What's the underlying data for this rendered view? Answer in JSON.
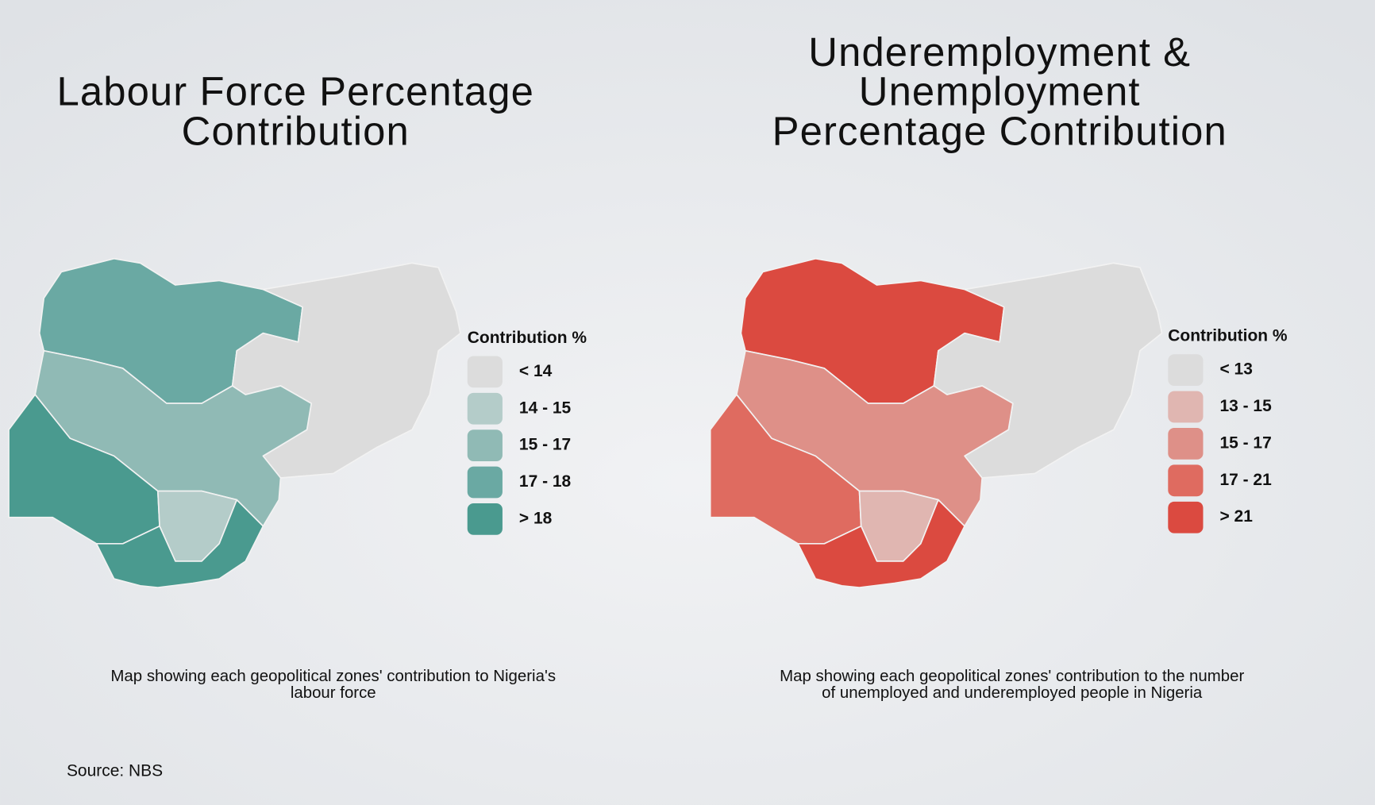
{
  "maps": [
    {
      "title_lines": [
        "Labour Force Percentage",
        "Contribution"
      ],
      "legend_title": "Contribution %",
      "legend": [
        {
          "label": "< 14",
          "color": "#dcdcdc"
        },
        {
          "label": "14 - 15",
          "color": "#b4ccc9"
        },
        {
          "label": "15 - 17",
          "color": "#90bab5"
        },
        {
          "label": "17 - 18",
          "color": "#6aa9a3"
        },
        {
          "label": "> 18",
          "color": "#4a9a8f"
        }
      ],
      "zone_colors": [
        "#6aa9a3",
        "#dcdcdc",
        "#90bab5",
        "#4a9a8f",
        "#b4ccc9",
        "#4a9a8f"
      ],
      "caption_lines": [
        "Map showing each geopolitical zones' contribution to Nigeria's",
        "labour force"
      ]
    },
    {
      "title_lines": [
        "Underemployment  &",
        "Unemployment",
        "Percentage Contribution"
      ],
      "legend_title": "Contribution %",
      "legend": [
        {
          "label": "< 13",
          "color": "#dcdcdc"
        },
        {
          "label": "13 - 15",
          "color": "#e0b6b1"
        },
        {
          "label": "15 - 17",
          "color": "#de9088"
        },
        {
          "label": "17 - 21",
          "color": "#df6b60"
        },
        {
          "label": "> 21",
          "color": "#db4a40"
        }
      ],
      "zone_colors": [
        "#db4a40",
        "#dcdcdc",
        "#de9088",
        "#df6b60",
        "#e0b6b1",
        "#db4a40"
      ],
      "caption_lines": [
        "Map showing each geopolitical zones' contribution to the number",
        "of unemployed and underemployed people in Nigeria"
      ]
    }
  ],
  "source": "Source: NBS"
}
